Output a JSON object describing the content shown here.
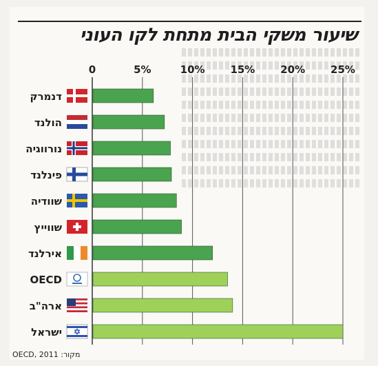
{
  "title": "שיעור משקי הבית מתחת לקו העוני",
  "source": "מקור: OECD, 2011",
  "chart_data": {
    "type": "bar",
    "orientation": "horizontal",
    "title": "שיעור משקי הבית מתחת לקו העוני",
    "x_ticks": [
      "0",
      "5%",
      "10%",
      "15%",
      "20%",
      "25%"
    ],
    "xlim": [
      0,
      25
    ],
    "grid": true,
    "categories": [
      "דנמרק",
      "הולנד",
      "נורווגיה",
      "פינלנד",
      "שוודיה",
      "שווייץ",
      "אירלנד",
      "OECD",
      "ארה\"ב",
      "ישראל"
    ],
    "values": [
      6.1,
      7.2,
      7.8,
      7.9,
      8.4,
      8.9,
      12.0,
      13.5,
      14.0,
      25.0
    ],
    "bar_colors": [
      "#4aa34e",
      "#4aa34e",
      "#4aa34e",
      "#4aa34e",
      "#4aa34e",
      "#4aa34e",
      "#4aa34e",
      "#9fd05a",
      "#9fd05a",
      "#9fd05a"
    ],
    "flags": [
      "denmark-flag-icon",
      "netherlands-flag-icon",
      "norway-flag-icon",
      "finland-flag-icon",
      "sweden-flag-icon",
      "switzerland-flag-icon",
      "ireland-flag-icon",
      "oecd-logo-icon",
      "usa-flag-icon",
      "israel-flag-icon"
    ]
  }
}
